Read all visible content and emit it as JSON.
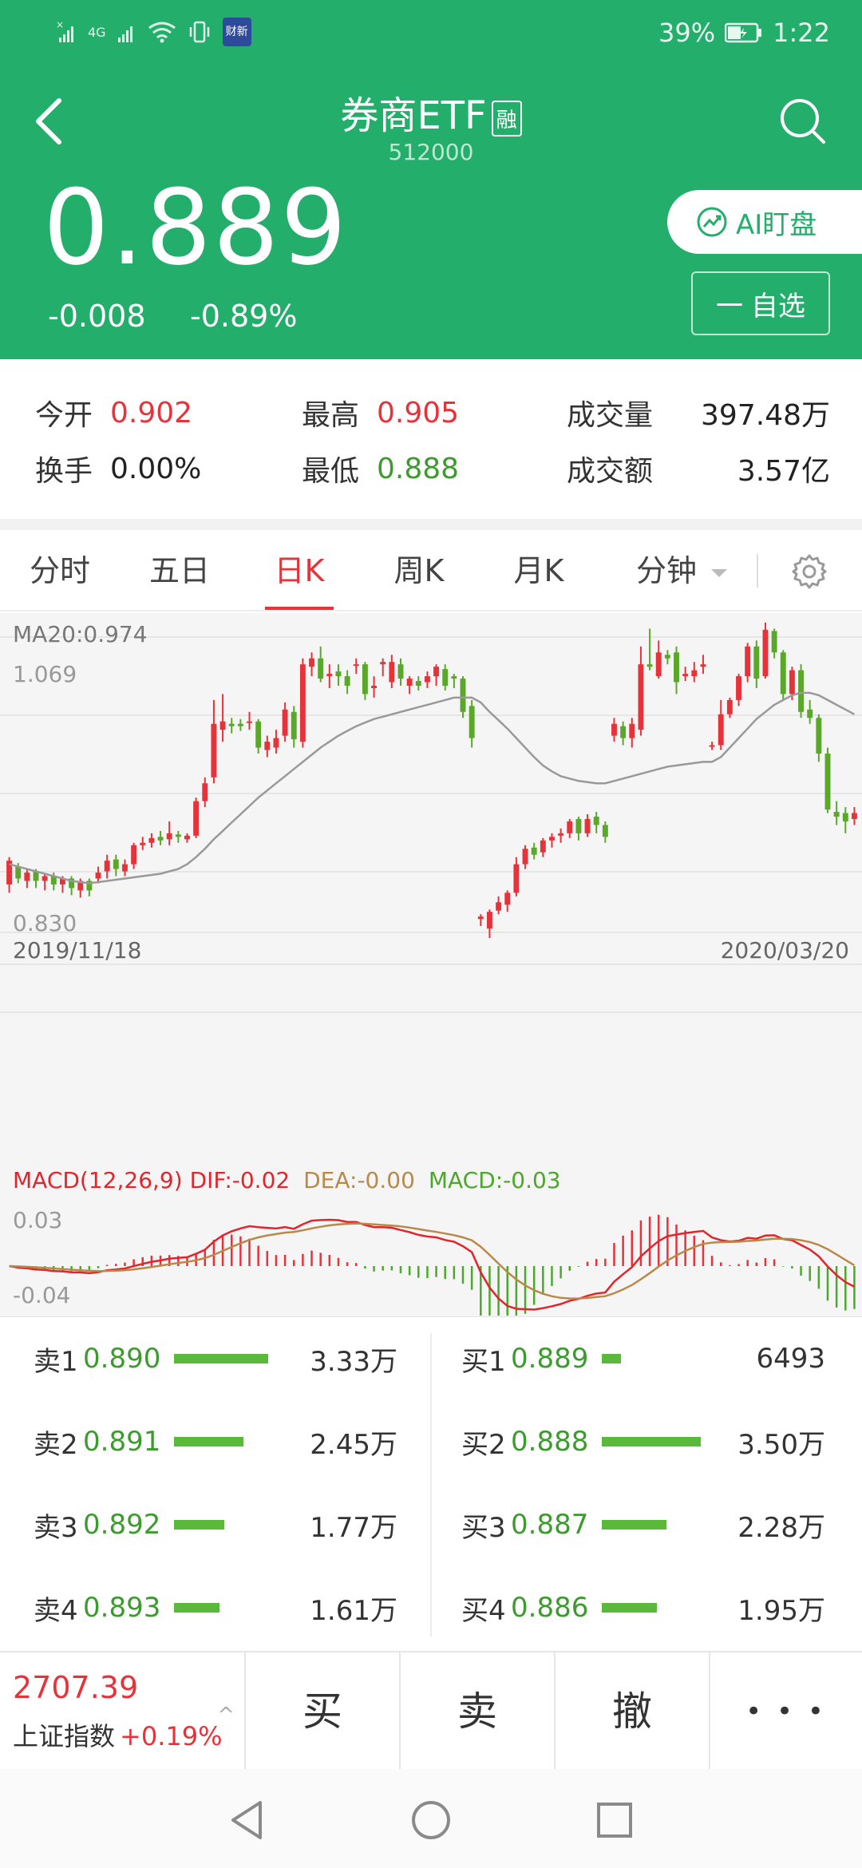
{
  "status_bar": {
    "battery": "39%",
    "time": "1:22",
    "network": "4G",
    "news_badge": "财新"
  },
  "header": {
    "title": "券商ETF",
    "margin_badge": "融",
    "code": "512000",
    "price": "0.889",
    "change": "-0.008",
    "change_pct": "-0.89%",
    "ai_button": "AI盯盘",
    "fav_button": "自选",
    "fav_symbol": "一"
  },
  "stats": {
    "row1": [
      {
        "label": "今开",
        "value": "0.902",
        "tone": "red"
      },
      {
        "label": "最高",
        "value": "0.905",
        "tone": "red"
      },
      {
        "label": "成交量",
        "value": "397.48万",
        "tone": "plain"
      }
    ],
    "row2": [
      {
        "label": "换手",
        "value": "0.00%",
        "tone": "plain"
      },
      {
        "label": "最低",
        "value": "0.888",
        "tone": "green"
      },
      {
        "label": "成交额",
        "value": "3.57亿",
        "tone": "plain"
      }
    ]
  },
  "tabs": [
    {
      "label": "分时"
    },
    {
      "label": "五日"
    },
    {
      "label": "日K",
      "active": true
    },
    {
      "label": "周K"
    },
    {
      "label": "月K"
    },
    {
      "label": "分钟"
    }
  ],
  "chart_data": {
    "type": "candlestick",
    "ma_label": "MA20:0.974",
    "y_high_label": "1.069",
    "y_low_label": "0.830",
    "start_date": "2019/11/18",
    "end_date": "2020/03/20",
    "candles": [
      [
        0.855,
        0.875,
        0.848,
        0.878
      ],
      [
        0.87,
        0.86,
        0.856,
        0.873
      ],
      [
        0.858,
        0.865,
        0.852,
        0.868
      ],
      [
        0.866,
        0.858,
        0.852,
        0.868
      ],
      [
        0.858,
        0.862,
        0.85,
        0.864
      ],
      [
        0.862,
        0.855,
        0.85,
        0.865
      ],
      [
        0.855,
        0.86,
        0.848,
        0.862
      ],
      [
        0.86,
        0.852,
        0.846,
        0.862
      ],
      [
        0.85,
        0.858,
        0.844,
        0.86
      ],
      [
        0.858,
        0.85,
        0.845,
        0.86
      ],
      [
        0.86,
        0.865,
        0.856,
        0.87
      ],
      [
        0.866,
        0.875,
        0.86,
        0.88
      ],
      [
        0.876,
        0.868,
        0.862,
        0.88
      ],
      [
        0.866,
        0.872,
        0.862,
        0.876
      ],
      [
        0.872,
        0.888,
        0.868,
        0.89
      ],
      [
        0.888,
        0.89,
        0.884,
        0.895
      ],
      [
        0.89,
        0.894,
        0.886,
        0.898
      ],
      [
        0.895,
        0.892,
        0.888,
        0.9
      ],
      [
        0.893,
        0.898,
        0.888,
        0.908
      ],
      [
        0.897,
        0.895,
        0.89,
        0.9
      ],
      [
        0.893,
        0.896,
        0.89,
        0.898
      ],
      [
        0.896,
        0.925,
        0.894,
        0.928
      ],
      [
        0.925,
        0.94,
        0.92,
        0.945
      ],
      [
        0.945,
        0.99,
        0.94,
        1.01
      ],
      [
        0.985,
        0.992,
        0.975,
        1.015
      ],
      [
        0.99,
        0.988,
        0.982,
        0.995
      ],
      [
        0.99,
        0.988,
        0.984,
        0.994
      ],
      [
        0.992,
        0.992,
        0.985,
        1.0
      ],
      [
        0.992,
        0.97,
        0.965,
        0.994
      ],
      [
        0.968,
        0.975,
        0.962,
        0.98
      ],
      [
        0.97,
        0.978,
        0.965,
        0.985
      ],
      [
        0.98,
        1.002,
        0.975,
        1.008
      ],
      [
        1.0,
        0.977,
        0.97,
        1.005
      ],
      [
        0.975,
        1.04,
        0.97,
        1.045
      ],
      [
        1.038,
        1.045,
        1.03,
        1.05
      ],
      [
        1.045,
        1.028,
        1.025,
        1.055
      ],
      [
        1.03,
        1.032,
        1.02,
        1.04
      ],
      [
        1.034,
        1.03,
        1.022,
        1.04
      ],
      [
        1.03,
        1.022,
        1.015,
        1.035
      ],
      [
        1.04,
        1.04,
        1.032,
        1.045
      ],
      [
        1.04,
        1.015,
        1.01,
        1.042
      ],
      [
        1.02,
        1.022,
        1.012,
        1.03
      ],
      [
        1.04,
        1.042,
        1.03,
        1.045
      ],
      [
        1.025,
        1.042,
        1.02,
        1.048
      ],
      [
        1.04,
        1.028,
        1.022,
        1.045
      ],
      [
        1.022,
        1.028,
        1.015,
        1.03
      ],
      [
        1.026,
        1.022,
        1.018,
        1.03
      ],
      [
        1.025,
        1.03,
        1.02,
        1.034
      ],
      [
        1.03,
        1.038,
        1.022,
        1.04
      ],
      [
        1.036,
        1.022,
        1.018,
        1.04
      ],
      [
        1.03,
        1.028,
        1.02,
        1.032
      ],
      [
        1.028,
        1.0,
        0.995,
        1.03
      ],
      [
        1.005,
        0.978,
        0.97,
        1.01
      ],
      [
        0.826,
        0.828,
        0.82,
        0.83
      ],
      [
        0.818,
        0.832,
        0.81,
        0.834
      ],
      [
        0.833,
        0.84,
        0.83,
        0.845
      ],
      [
        0.838,
        0.848,
        0.832,
        0.85
      ],
      [
        0.848,
        0.872,
        0.845,
        0.878
      ],
      [
        0.872,
        0.885,
        0.868,
        0.888
      ],
      [
        0.886,
        0.88,
        0.876,
        0.89
      ],
      [
        0.882,
        0.892,
        0.878,
        0.894
      ],
      [
        0.892,
        0.895,
        0.886,
        0.898
      ],
      [
        0.896,
        0.898,
        0.89,
        0.902
      ],
      [
        0.898,
        0.908,
        0.894,
        0.91
      ],
      [
        0.91,
        0.898,
        0.892,
        0.912
      ],
      [
        0.898,
        0.91,
        0.895,
        0.914
      ],
      [
        0.912,
        0.905,
        0.898,
        0.916
      ],
      [
        0.905,
        0.895,
        0.89,
        0.908
      ],
      [
        0.98,
        0.99,
        0.975,
        0.995
      ],
      [
        0.988,
        0.978,
        0.972,
        0.992
      ],
      [
        0.978,
        0.99,
        0.97,
        0.995
      ],
      [
        0.985,
        1.04,
        0.98,
        1.055
      ],
      [
        1.04,
        1.038,
        1.035,
        1.07
      ],
      [
        1.03,
        1.05,
        1.028,
        1.06
      ],
      [
        1.048,
        1.045,
        1.04,
        1.052
      ],
      [
        1.05,
        1.025,
        1.015,
        1.055
      ],
      [
        1.03,
        1.032,
        1.026,
        1.038
      ],
      [
        1.03,
        1.035,
        1.025,
        1.042
      ],
      [
        1.038,
        1.04,
        1.032,
        1.048
      ],
      [
        0.972,
        0.972,
        0.968,
        0.975
      ],
      [
        0.972,
        0.998,
        0.968,
        1.01
      ],
      [
        0.998,
        1.01,
        0.995,
        1.012
      ],
      [
        1.01,
        1.03,
        1.005,
        1.032
      ],
      [
        1.03,
        1.055,
        1.025,
        1.058
      ],
      [
        1.055,
        1.028,
        1.02,
        1.06
      ],
      [
        1.03,
        1.069,
        1.028,
        1.075
      ],
      [
        1.068,
        1.05,
        1.045,
        1.07
      ],
      [
        1.05,
        1.015,
        1.01,
        1.052
      ],
      [
        1.015,
        1.035,
        1.01,
        1.038
      ],
      [
        1.035,
        1.0,
        0.995,
        1.04
      ],
      [
        1.002,
        0.995,
        0.99,
        1.01
      ],
      [
        0.995,
        0.965,
        0.958,
        0.998
      ],
      [
        0.965,
        0.918,
        0.915,
        0.97
      ],
      [
        0.916,
        0.912,
        0.905,
        0.925
      ],
      [
        0.915,
        0.908,
        0.898,
        0.92
      ],
      [
        0.91,
        0.915,
        0.905,
        0.92
      ]
    ],
    "ma20": [
      0.872,
      0.87,
      0.868,
      0.866,
      0.864,
      0.862,
      0.86,
      0.858,
      0.857,
      0.856,
      0.857,
      0.858,
      0.859,
      0.86,
      0.861,
      0.862,
      0.863,
      0.864,
      0.866,
      0.868,
      0.872,
      0.878,
      0.885,
      0.893,
      0.9,
      0.907,
      0.914,
      0.921,
      0.928,
      0.934,
      0.94,
      0.946,
      0.952,
      0.958,
      0.964,
      0.97,
      0.975,
      0.98,
      0.984,
      0.988,
      0.991,
      0.994,
      0.996,
      0.998,
      1.0,
      1.002,
      1.004,
      1.006,
      1.008,
      1.01,
      1.012,
      1.012,
      1.012,
      1.008,
      1.0,
      0.993,
      0.986,
      0.978,
      0.97,
      0.962,
      0.955,
      0.95,
      0.946,
      0.944,
      0.942,
      0.941,
      0.94,
      0.94,
      0.942,
      0.944,
      0.946,
      0.948,
      0.95,
      0.952,
      0.954,
      0.955,
      0.956,
      0.957,
      0.958,
      0.958,
      0.962,
      0.97,
      0.978,
      0.986,
      0.994,
      1.0,
      1.006,
      1.01,
      1.014,
      1.016,
      1.016,
      1.014,
      1.01,
      1.006,
      1.002,
      0.998
    ],
    "macd": {
      "label_name": "MACD(12,26,9)",
      "dif_label": "DIF:-0.02",
      "dea_label": "DEA:-0.00",
      "macd_label": "MACD:-0.03",
      "y_top_label": "0.03",
      "y_bottom_label": "-0.04",
      "dif_color": "#e0262c",
      "dea_color": "#b88a4a",
      "hist_pos_color": "#e8323a",
      "hist_neg_color": "#4ca82c"
    },
    "colors": {
      "up": "#e8323a",
      "down": "#5aa82a",
      "ma": "#999999"
    }
  },
  "order_book": {
    "sell": [
      {
        "label": "卖1",
        "price": "0.890",
        "volume": "3.33万",
        "ratio": 0.95
      },
      {
        "label": "卖2",
        "price": "0.891",
        "volume": "2.45万",
        "ratio": 0.7
      },
      {
        "label": "卖3",
        "price": "0.892",
        "volume": "1.77万",
        "ratio": 0.51
      },
      {
        "label": "卖4",
        "price": "0.893",
        "volume": "1.61万",
        "ratio": 0.46
      }
    ],
    "buy": [
      {
        "label": "买1",
        "price": "0.889",
        "volume": "6493",
        "ratio": 0.19
      },
      {
        "label": "买2",
        "price": "0.888",
        "volume": "3.50万",
        "ratio": 1.0
      },
      {
        "label": "买3",
        "price": "0.887",
        "volume": "2.28万",
        "ratio": 0.65
      },
      {
        "label": "买4",
        "price": "0.886",
        "volume": "1.95万",
        "ratio": 0.56
      }
    ]
  },
  "trade_bar": {
    "index_value": "2707.39",
    "index_name": "上证指数",
    "index_change": "+0.19%",
    "caret": "^",
    "buy": "买",
    "sell": "卖",
    "cancel": "撤",
    "more": "• • •"
  }
}
